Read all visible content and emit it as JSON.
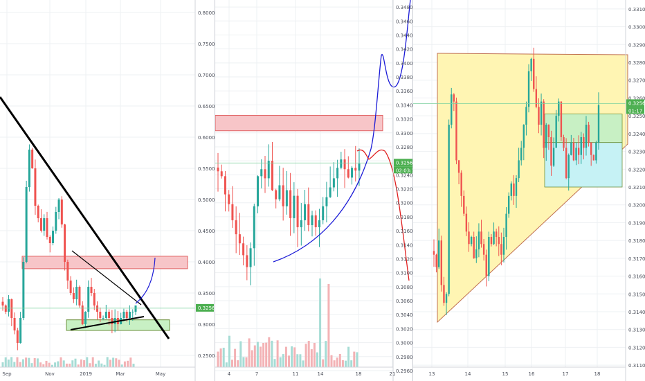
{
  "colors": {
    "up": "#26a69a",
    "down": "#ef5350",
    "price_badge": "#4caf50",
    "grid": "#eef0f3",
    "axis_text": "#4a4e59",
    "zone_red_fill": "#f7c5c8",
    "zone_red_stroke": "#e06060",
    "zone_green_fill": "#c8f0c4",
    "zone_cyan_fill": "#c6f2f5",
    "triangle_fill": "#fff5b3",
    "triangle_stroke": "#c07050",
    "trend_black": "#000000",
    "projection_blue": "#1a1ad6",
    "projection_red": "#e02020"
  },
  "panels": [
    {
      "id": "left",
      "y_axis": {
        "ticks": [
          "0.80000",
          "0.75000",
          "0.70000",
          "0.65000",
          "0.60000",
          "0.55000",
          "0.50000",
          "0.45000",
          "0.40000",
          "0.35000",
          "0.30000",
          "0.25000"
        ],
        "price_badge": "0.32569"
      },
      "x_axis": {
        "ticks": [
          "Sep",
          "Nov",
          "2019",
          "Mar",
          "May"
        ]
      }
    },
    {
      "id": "middle",
      "y_axis": {
        "ticks": [
          "0.34800",
          "0.34600",
          "0.34400",
          "0.34200",
          "0.34000",
          "0.33800",
          "0.33600",
          "0.33400",
          "0.33200",
          "0.33000",
          "0.32800",
          "0.32600",
          "0.32400",
          "0.32200",
          "0.32000",
          "0.31800",
          "0.31600",
          "0.31400",
          "0.31200",
          "0.31000",
          "0.30800",
          "0.30600",
          "0.30400",
          "0.30200",
          "0.30000",
          "0.29800",
          "0.29600"
        ],
        "price_badge": "0.32569",
        "countdown_badge": "02:03:17"
      },
      "x_axis": {
        "ticks": [
          "4",
          "7",
          "11",
          "14",
          "18",
          "21"
        ]
      }
    },
    {
      "id": "right",
      "y_axis": {
        "ticks": [
          "0.33100",
          "0.33000",
          "0.32900",
          "0.32800",
          "0.32700",
          "0.32600",
          "0.32500",
          "0.32400",
          "0.32300",
          "0.32200",
          "0.32100",
          "0.32000",
          "0.31900",
          "0.31800",
          "0.31700",
          "0.31600",
          "0.31500",
          "0.31400",
          "0.31300",
          "0.31200",
          "0.31100"
        ],
        "price_badge": "0.32569",
        "countdown_badge": "01:17"
      },
      "x_axis": {
        "ticks": [
          "13",
          "14",
          "15",
          "16",
          "17",
          "18"
        ]
      }
    }
  ],
  "chart_data": [
    {
      "type": "candlestick",
      "timeframe": "daily",
      "y_scale": "linear",
      "ylim": [
        0.22,
        0.82
      ],
      "grid": true,
      "last_price": 0.32569,
      "closes": [
        0.33,
        0.32,
        0.34,
        0.31,
        0.29,
        0.27,
        0.31,
        0.4,
        0.52,
        0.58,
        0.55,
        0.49,
        0.47,
        0.45,
        0.47,
        0.44,
        0.43,
        0.45,
        0.48,
        0.5,
        0.46,
        0.4,
        0.37,
        0.35,
        0.34,
        0.36,
        0.33,
        0.3,
        0.32,
        0.36,
        0.35,
        0.33,
        0.32,
        0.31,
        0.31,
        0.32,
        0.31,
        0.3,
        0.31,
        0.3,
        0.31,
        0.32,
        0.31,
        0.32,
        0.32,
        0.33
      ],
      "x_ticks": [
        "Sep",
        "Nov",
        "2019",
        "Mar",
        "May"
      ],
      "annotations": [
        {
          "kind": "zone",
          "color": "red",
          "from": 0.389,
          "to": 0.409
        },
        {
          "kind": "zone",
          "color": "green",
          "from": 0.29,
          "to": 0.307
        },
        {
          "kind": "trendline",
          "color": "black",
          "description": "descending resistance"
        },
        {
          "kind": "trendline",
          "color": "black",
          "description": "ascending support"
        },
        {
          "kind": "projection",
          "color": "blue",
          "description": "breakout curve up"
        }
      ]
    },
    {
      "type": "candlestick",
      "timeframe": "intraday",
      "y_scale": "linear",
      "ylim": [
        0.2955,
        0.349
      ],
      "grid": true,
      "last_price": 0.32569,
      "closes": [
        0.3245,
        0.3238,
        0.3212,
        0.3198,
        0.3175,
        0.3155,
        0.3142,
        0.3125,
        0.3108,
        0.3135,
        0.3195,
        0.3238,
        0.3248,
        0.3235,
        0.326,
        0.3218,
        0.3205,
        0.3225,
        0.3195,
        0.3218,
        0.3178,
        0.321,
        0.3165,
        0.3175,
        0.3198,
        0.3168,
        0.3182,
        0.3165,
        0.3175,
        0.3195,
        0.3208,
        0.3222,
        0.3235,
        0.325,
        0.3262,
        0.3248,
        0.3236,
        0.325,
        0.3246,
        0.3256
      ],
      "x_ticks": [
        "4",
        "7",
        "11",
        "14",
        "18",
        "21"
      ],
      "annotations": [
        {
          "kind": "zone",
          "color": "red",
          "from": 0.3303,
          "to": 0.3325
        },
        {
          "kind": "projection",
          "color": "blue",
          "description": "parabolic arc up"
        },
        {
          "kind": "projection",
          "color": "red",
          "description": "drop scenario"
        }
      ]
    },
    {
      "type": "candlestick",
      "timeframe": "intraday",
      "y_scale": "linear",
      "ylim": [
        0.3105,
        0.3315
      ],
      "grid": true,
      "last_price": 0.32569,
      "closes": [
        0.3172,
        0.3165,
        0.318,
        0.3155,
        0.3145,
        0.315,
        0.3245,
        0.3262,
        0.3258,
        0.3225,
        0.3218,
        0.3205,
        0.3195,
        0.3185,
        0.3178,
        0.3182,
        0.317,
        0.3175,
        0.3185,
        0.3178,
        0.3172,
        0.316,
        0.3182,
        0.3178,
        0.3185,
        0.3182,
        0.3178,
        0.3172,
        0.3182,
        0.3195,
        0.3205,
        0.3212,
        0.3205,
        0.3215,
        0.3225,
        0.3232,
        0.3245,
        0.3255,
        0.3275,
        0.3282,
        0.3265,
        0.3255,
        0.3245,
        0.3258,
        0.3232,
        0.3245,
        0.3238,
        0.3222,
        0.3232,
        0.325,
        0.3258,
        0.3238,
        0.3232,
        0.3215,
        0.3228,
        0.3235,
        0.3225,
        0.3232,
        0.3228,
        0.3238,
        0.3232,
        0.3245,
        0.3235,
        0.3228,
        0.3225,
        0.3235,
        0.3256
      ],
      "x_ticks": [
        "13",
        "14",
        "15",
        "16",
        "17",
        "18"
      ],
      "annotations": [
        {
          "kind": "triangle",
          "color": "yellow",
          "description": "ascending triangle"
        },
        {
          "kind": "zone",
          "color": "green",
          "from": 0.3235,
          "to": 0.3251
        },
        {
          "kind": "zone",
          "color": "cyan",
          "from": 0.321,
          "to": 0.3235
        }
      ]
    }
  ]
}
